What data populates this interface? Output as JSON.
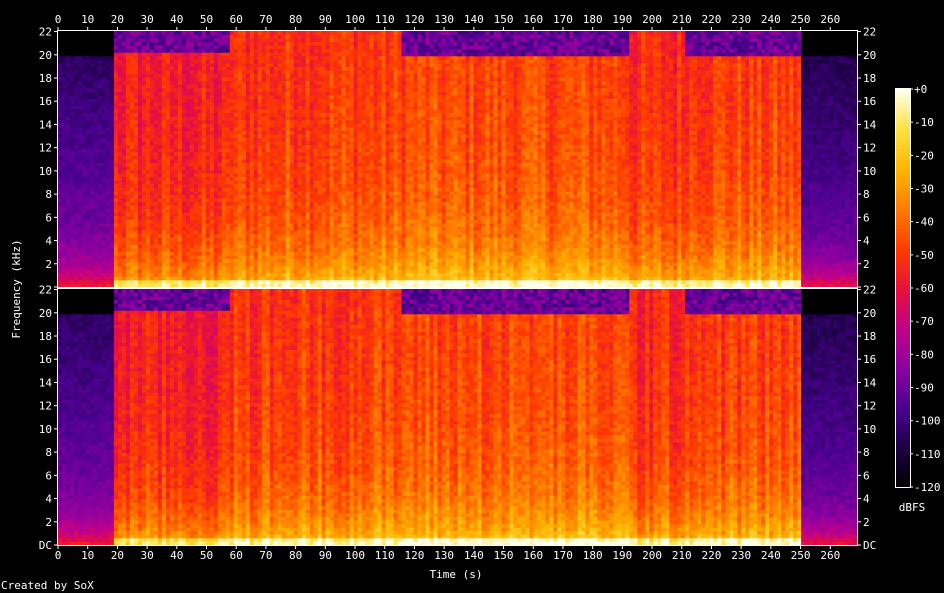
{
  "chart_data": {
    "type": "heatmap",
    "subtype": "spectrogram",
    "channels": 2,
    "xlabel": "Time (s)",
    "ylabel": "Frequency (kHz)",
    "xlim": [
      0,
      269
    ],
    "ylim": [
      0,
      22.05
    ],
    "x_ticks": [
      0,
      10,
      20,
      30,
      40,
      50,
      60,
      70,
      80,
      90,
      100,
      110,
      120,
      130,
      140,
      150,
      160,
      170,
      180,
      190,
      200,
      210,
      220,
      230,
      240,
      250,
      260
    ],
    "x_tick_labels": [
      "0",
      "10",
      "20",
      "30",
      "40",
      "50",
      "60",
      "70",
      "80",
      "90",
      "100",
      "110",
      "120",
      "130",
      "140",
      "150",
      "160",
      "170",
      "180",
      "190",
      "200",
      "210",
      "220",
      "230",
      "240",
      "250",
      "260"
    ],
    "y_ticks": [
      0,
      2,
      4,
      6,
      8,
      10,
      12,
      14,
      16,
      18,
      20,
      22
    ],
    "y_tick_labels_top": [
      "",
      "2",
      "4",
      "6",
      "8",
      "10",
      "12",
      "14",
      "16",
      "18",
      "20",
      "22"
    ],
    "y_tick_labels_bottom": [
      "DC",
      "2",
      "4",
      "6",
      "8",
      "10",
      "12",
      "14",
      "16",
      "18",
      "20",
      "22"
    ],
    "colorbar": {
      "label": "dBFS",
      "range": [
        -120,
        0
      ],
      "ticks": [
        0,
        -10,
        -20,
        -30,
        -40,
        -50,
        -60,
        -70,
        -80,
        -90,
        -100,
        -110,
        -120
      ],
      "tick_labels": [
        "+0",
        "-10",
        "-20",
        "-30",
        "-40",
        "-50",
        "-60",
        "-70",
        "-80",
        "-90",
        "-100",
        "-110",
        "-120"
      ],
      "colors": [
        "#000000",
        "#1a0040",
        "#4a0090",
        "#8a00a0",
        "#c0008a",
        "#e8103c",
        "#ff3a00",
        "#ff7a00",
        "#ffb400",
        "#ffe040",
        "#ffffe8"
      ]
    },
    "segments": [
      {
        "t_start": 0,
        "t_end": 19,
        "level_db": -85,
        "hf_cutoff_khz": 20
      },
      {
        "t_start": 19,
        "t_end": 58,
        "level_db": -52,
        "hf_cutoff_khz": 20.3
      },
      {
        "t_start": 58,
        "t_end": 77,
        "level_db": -46,
        "hf_cutoff_khz": 22
      },
      {
        "t_start": 77,
        "t_end": 115,
        "level_db": -44,
        "hf_cutoff_khz": 22
      },
      {
        "t_start": 115,
        "t_end": 193,
        "level_db": -42,
        "hf_cutoff_khz": 20
      },
      {
        "t_start": 193,
        "t_end": 211,
        "level_db": -48,
        "hf_cutoff_khz": 22
      },
      {
        "t_start": 211,
        "t_end": 250,
        "level_db": -44,
        "hf_cutoff_khz": 20
      },
      {
        "t_start": 250,
        "t_end": 269,
        "level_db": -88,
        "hf_cutoff_khz": 20
      }
    ],
    "annotation": "Created by SoX"
  }
}
